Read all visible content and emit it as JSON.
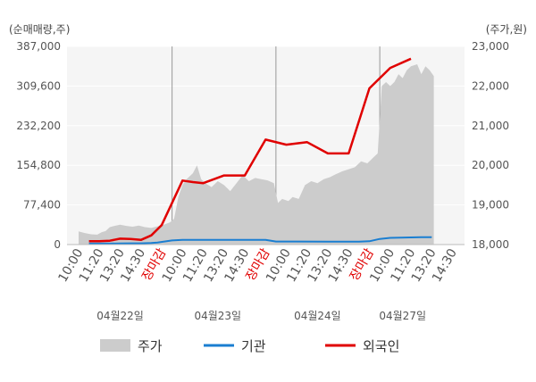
{
  "chart_data": {
    "type": "line",
    "left_unit": "(순매매량,주)",
    "right_unit": "(주가,원)",
    "left_ylim": [
      0,
      387000
    ],
    "left_ticks": [
      "0",
      "77,400",
      "154,800",
      "232,200",
      "309,600",
      "387,000"
    ],
    "right_ylim": [
      18000,
      23000
    ],
    "right_ticks": [
      "18,000",
      "19,000",
      "20,000",
      "21,000",
      "22,000",
      "23,000"
    ],
    "x_ticks": [
      {
        "label": "10:00",
        "close": false
      },
      {
        "label": "11:20",
        "close": false
      },
      {
        "label": "13:20",
        "close": false
      },
      {
        "label": "14:30",
        "close": false
      },
      {
        "label": "장마감",
        "close": true
      },
      {
        "label": "10:00",
        "close": false
      },
      {
        "label": "11:20",
        "close": false
      },
      {
        "label": "13:20",
        "close": false
      },
      {
        "label": "14:30",
        "close": false
      },
      {
        "label": "장마감",
        "close": true
      },
      {
        "label": "10:00",
        "close": false
      },
      {
        "label": "11:20",
        "close": false
      },
      {
        "label": "13:20",
        "close": false
      },
      {
        "label": "14:30",
        "close": false
      },
      {
        "label": "장마감",
        "close": true
      },
      {
        "label": "10:00",
        "close": false
      },
      {
        "label": "11:20",
        "close": false
      },
      {
        "label": "13:20",
        "close": false
      },
      {
        "label": "14:30",
        "close": false
      }
    ],
    "dates": [
      {
        "label": "04월22일",
        "tick_index": 2
      },
      {
        "label": "04월23일",
        "tick_index": 6.7
      },
      {
        "label": "04월24일",
        "tick_index": 11.5
      },
      {
        "label": "04월27일",
        "tick_index": 15.6
      }
    ],
    "day_separators": [
      4.5,
      9.5,
      14.5
    ],
    "price": {
      "name": "주가",
      "color": "#cccccc",
      "points": [
        [
          0,
          18330
        ],
        [
          0.3,
          18290
        ],
        [
          0.6,
          18260
        ],
        [
          0.9,
          18250
        ],
        [
          1.1,
          18310
        ],
        [
          1.3,
          18340
        ],
        [
          1.5,
          18440
        ],
        [
          1.8,
          18480
        ],
        [
          2.0,
          18500
        ],
        [
          2.3,
          18470
        ],
        [
          2.6,
          18450
        ],
        [
          2.9,
          18480
        ],
        [
          3.2,
          18440
        ],
        [
          3.5,
          18420
        ],
        [
          3.8,
          18460
        ],
        [
          4.1,
          18500
        ],
        [
          4.4,
          18560
        ],
        [
          4.6,
          18650
        ],
        [
          4.8,
          19200
        ],
        [
          5.0,
          19500
        ],
        [
          5.2,
          19650
        ],
        [
          5.5,
          19800
        ],
        [
          5.7,
          20000
        ],
        [
          5.9,
          19650
        ],
        [
          6.1,
          19550
        ],
        [
          6.4,
          19450
        ],
        [
          6.7,
          19600
        ],
        [
          7.0,
          19500
        ],
        [
          7.3,
          19350
        ],
        [
          7.6,
          19550
        ],
        [
          7.9,
          19750
        ],
        [
          8.2,
          19600
        ],
        [
          8.5,
          19680
        ],
        [
          8.8,
          19650
        ],
        [
          9.1,
          19620
        ],
        [
          9.4,
          19550
        ],
        [
          9.6,
          19050
        ],
        [
          9.8,
          19150
        ],
        [
          10.1,
          19100
        ],
        [
          10.3,
          19200
        ],
        [
          10.6,
          19150
        ],
        [
          10.9,
          19500
        ],
        [
          11.2,
          19600
        ],
        [
          11.5,
          19550
        ],
        [
          11.8,
          19650
        ],
        [
          12.1,
          19700
        ],
        [
          12.4,
          19780
        ],
        [
          12.7,
          19850
        ],
        [
          13.0,
          19900
        ],
        [
          13.3,
          19950
        ],
        [
          13.6,
          20100
        ],
        [
          13.9,
          20050
        ],
        [
          14.2,
          20200
        ],
        [
          14.4,
          20300
        ],
        [
          14.6,
          22000
        ],
        [
          14.8,
          22100
        ],
        [
          15.0,
          22000
        ],
        [
          15.2,
          22100
        ],
        [
          15.4,
          22300
        ],
        [
          15.6,
          22200
        ],
        [
          15.8,
          22400
        ],
        [
          16.0,
          22500
        ],
        [
          16.3,
          22550
        ],
        [
          16.5,
          22300
        ],
        [
          16.7,
          22500
        ],
        [
          16.9,
          22400
        ],
        [
          17.1,
          22250
        ]
      ]
    },
    "series": [
      {
        "name": "기관",
        "color": "#1a7ed1",
        "points": [
          [
            0.5,
            2000
          ],
          [
            1.0,
            2000
          ],
          [
            1.5,
            2000
          ],
          [
            2.0,
            2200
          ],
          [
            2.5,
            2500
          ],
          [
            3.0,
            2500
          ],
          [
            3.5,
            3000
          ],
          [
            3.8,
            4000
          ],
          [
            4.5,
            8000
          ],
          [
            5.0,
            9000
          ],
          [
            7.0,
            9000
          ],
          [
            9.0,
            9000
          ],
          [
            9.5,
            6000
          ],
          [
            10.5,
            6000
          ],
          [
            12.0,
            5500
          ],
          [
            13.5,
            5500
          ],
          [
            14.0,
            6500
          ],
          [
            14.5,
            11000
          ],
          [
            15.0,
            13000
          ],
          [
            15.5,
            13500
          ],
          [
            16.0,
            14000
          ],
          [
            16.5,
            14500
          ],
          [
            17.0,
            14500
          ]
        ]
      },
      {
        "name": "외국인",
        "color": "#e00000",
        "points": [
          [
            0.5,
            6500
          ],
          [
            1.0,
            6500
          ],
          [
            1.5,
            7500
          ],
          [
            2.0,
            11500
          ],
          [
            2.5,
            11000
          ],
          [
            3.0,
            9000
          ],
          [
            3.5,
            18000
          ],
          [
            4.0,
            38000
          ],
          [
            5.0,
            125000
          ],
          [
            5.5,
            122000
          ],
          [
            6.0,
            120000
          ],
          [
            7.0,
            135000
          ],
          [
            8.0,
            135000
          ],
          [
            9.0,
            205000
          ],
          [
            10.0,
            195000
          ],
          [
            11.0,
            200000
          ],
          [
            12.0,
            178000
          ],
          [
            13.0,
            178000
          ],
          [
            14.0,
            305000
          ],
          [
            15.0,
            345000
          ],
          [
            16.0,
            363000
          ]
        ]
      }
    ],
    "legend": [
      {
        "name": "주가",
        "kind": "area",
        "color": "#cccccc"
      },
      {
        "name": "기관",
        "kind": "line",
        "color": "#1a7ed1"
      },
      {
        "name": "외국인",
        "kind": "line",
        "color": "#e00000"
      }
    ],
    "grid": true,
    "legend_position": "bottom"
  }
}
